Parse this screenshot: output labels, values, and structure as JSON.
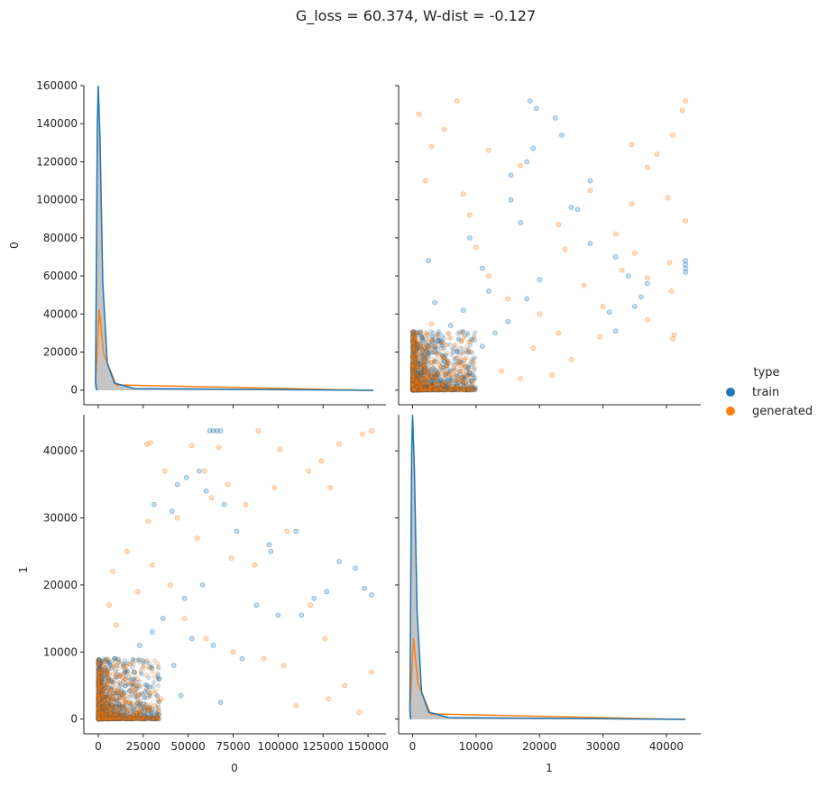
{
  "chart_data": {
    "type": "scatter",
    "kind": "pairplot",
    "title": "G_loss = 60.374, W-dist = -0.127",
    "variables": [
      "0",
      "1"
    ],
    "legend": {
      "title": "type",
      "placement": "right",
      "entries": [
        {
          "label": "train",
          "color": "#1f77b4"
        },
        {
          "label": "generated",
          "color": "#ff7f0e"
        }
      ]
    },
    "axes": {
      "x0": {
        "label": "0",
        "range": [
          -8000,
          160000
        ],
        "ticks": [
          0,
          25000,
          50000,
          75000,
          100000,
          125000,
          150000
        ]
      },
      "x1": {
        "label": "1",
        "range": [
          -2200,
          45400
        ],
        "ticks": [
          0,
          10000,
          20000,
          30000,
          40000
        ]
      },
      "y0": {
        "label": "0",
        "range": [
          -7700,
          160000
        ],
        "ticks": [
          0,
          20000,
          40000,
          60000,
          80000,
          100000,
          120000,
          140000,
          160000
        ]
      },
      "y1": {
        "label": "1",
        "range": [
          -2200,
          45400
        ],
        "ticks": [
          0,
          10000,
          20000,
          30000,
          40000
        ]
      }
    },
    "diagonal": {
      "type": "kde",
      "var0": {
        "peak_x": 0,
        "peak_y": 152000,
        "extent": [
          -1000,
          153000
        ]
      },
      "var1": {
        "peak_x": 0,
        "peak_y": 42800,
        "extent": [
          -300,
          43000
        ]
      }
    },
    "series": [
      {
        "name": "train",
        "color": "#1f77b4",
        "points_var0_var1": [
          [
            62000,
            43000
          ],
          [
            64000,
            43000
          ],
          [
            66000,
            43000
          ],
          [
            68000,
            43000
          ],
          [
            44000,
            35000
          ],
          [
            49000,
            36000
          ],
          [
            56000,
            37000
          ],
          [
            60000,
            34000
          ],
          [
            31000,
            32000
          ],
          [
            41000,
            31000
          ],
          [
            70000,
            32000
          ],
          [
            77000,
            28000
          ],
          [
            110000,
            28000
          ],
          [
            96000,
            25000
          ],
          [
            95000,
            26000
          ],
          [
            134000,
            23500
          ],
          [
            143000,
            22500
          ],
          [
            152000,
            18500
          ],
          [
            148000,
            19500
          ],
          [
            127000,
            19000
          ],
          [
            120000,
            18000
          ],
          [
            113000,
            15500
          ],
          [
            100000,
            15500
          ],
          [
            88000,
            17000
          ],
          [
            58000,
            20000
          ],
          [
            48000,
            18000
          ],
          [
            36000,
            15000
          ],
          [
            30000,
            13000
          ],
          [
            23000,
            11000
          ],
          [
            52000,
            12000
          ],
          [
            64000,
            11000
          ],
          [
            80000,
            9000
          ],
          [
            20000,
            7000
          ],
          [
            42000,
            8000
          ],
          [
            34000,
            6000
          ],
          [
            15000,
            5000
          ],
          [
            26000,
            4000
          ],
          [
            46000,
            3500
          ],
          [
            68000,
            2500
          ],
          [
            9000,
            9000
          ]
        ]
      },
      {
        "name": "generated",
        "color": "#ff7f0e",
        "points_var0_var1": [
          [
            27000,
            41000
          ],
          [
            29000,
            41200
          ],
          [
            52000,
            40800
          ],
          [
            67000,
            40500
          ],
          [
            89000,
            43000
          ],
          [
            101000,
            40200
          ],
          [
            134000,
            41000
          ],
          [
            147000,
            42500
          ],
          [
            152000,
            43000
          ],
          [
            37000,
            37000
          ],
          [
            59000,
            37000
          ],
          [
            72000,
            35000
          ],
          [
            98000,
            34500
          ],
          [
            129000,
            34500
          ],
          [
            117000,
            37000
          ],
          [
            124000,
            38500
          ],
          [
            8000,
            22000
          ],
          [
            16000,
            25000
          ],
          [
            28000,
            29500
          ],
          [
            44000,
            30000
          ],
          [
            63000,
            33000
          ],
          [
            82000,
            32000
          ],
          [
            105000,
            28000
          ],
          [
            118000,
            17000
          ],
          [
            137000,
            5000
          ],
          [
            152000,
            7000
          ],
          [
            126000,
            12000
          ],
          [
            103000,
            8000
          ],
          [
            87000,
            23000
          ],
          [
            74000,
            24000
          ],
          [
            55000,
            27000
          ],
          [
            40000,
            20000
          ],
          [
            22000,
            19000
          ],
          [
            10000,
            14000
          ],
          [
            6000,
            17000
          ],
          [
            30000,
            23000
          ],
          [
            48000,
            15000
          ],
          [
            60000,
            12000
          ],
          [
            75000,
            10000
          ],
          [
            92000,
            9000
          ],
          [
            110000,
            2000
          ],
          [
            128000,
            3000
          ],
          [
            145000,
            1000
          ],
          [
            35000,
            3000
          ]
        ]
      }
    ],
    "grid": false
  }
}
